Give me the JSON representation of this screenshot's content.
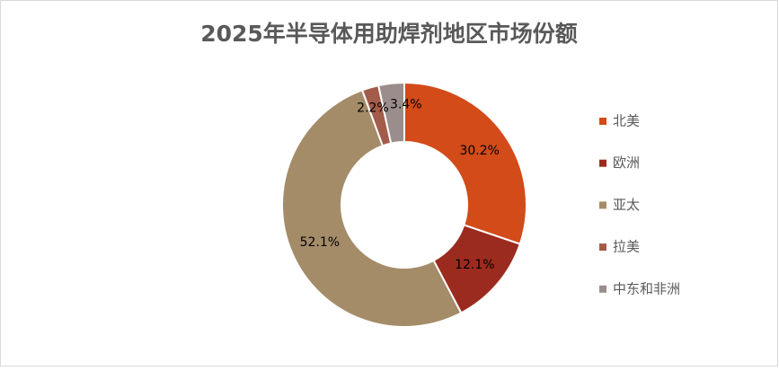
{
  "chart_data": {
    "type": "donut",
    "title": "2025年半导体用助焊剂地区市场份额",
    "categories": [
      "北美",
      "欧洲",
      "亚太",
      "拉美",
      "中东和非洲"
    ],
    "values": [
      30.2,
      12.1,
      52.1,
      2.2,
      3.4
    ],
    "value_labels": [
      "30.2%",
      "12.1%",
      "52.1%",
      "2.2%",
      "3.4%"
    ],
    "colors": [
      "#d24b19",
      "#9c2b1f",
      "#a48c69",
      "#a35b4a",
      "#9b8d8b"
    ],
    "legend": "right"
  }
}
